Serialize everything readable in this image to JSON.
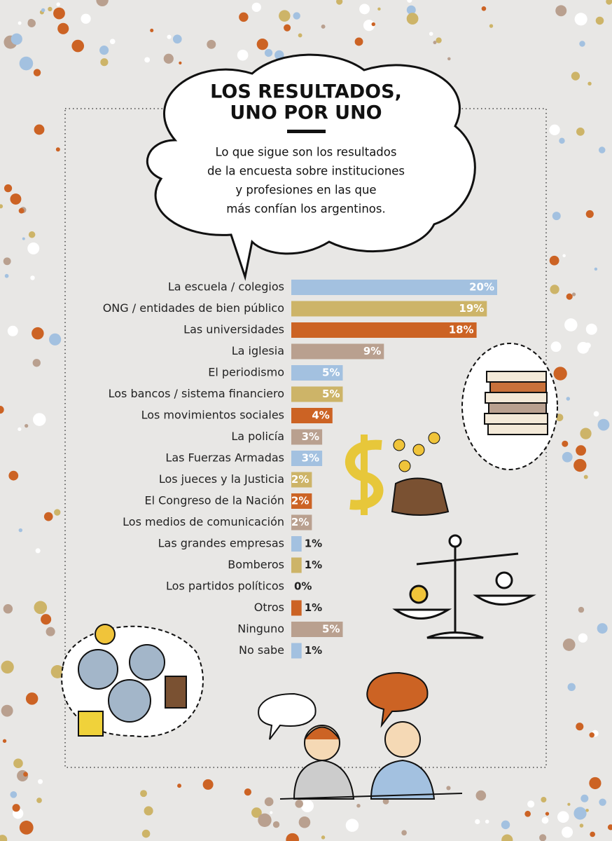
{
  "chart_data": {
    "type": "hbar",
    "title": [
      "LOS RESULTADOS,",
      "UNO POR UNO"
    ],
    "subtitle": [
      "Lo que sigue son los resultados",
      "de la encuesta sobre instituciones",
      "y profesiones en las que",
      "más confían los argentinos."
    ],
    "categories": [
      "La escuela / colegios",
      "ONG / entidades de bien público",
      "Las universidades",
      "La iglesia",
      "El periodismo",
      "Los bancos / sistema financiero",
      "Los movimientos sociales",
      "La policía",
      "Las Fuerzas Armadas",
      "Los jueces y la Justicia",
      "El Congreso de la Nación",
      "Los medios de comunicación",
      "Las grandes empresas",
      "Bomberos",
      "Los partidos políticos",
      "Otros",
      "Ninguno",
      "No sabe"
    ],
    "values": [
      20,
      19,
      18,
      9,
      5,
      5,
      4,
      3,
      3,
      2,
      2,
      2,
      1,
      1,
      0,
      1,
      5,
      1
    ],
    "value_labels": [
      "20%",
      "19%",
      "18%",
      "9%",
      "5%",
      "5%",
      "4%",
      "3%",
      "3%",
      "2%",
      "2%",
      "2%",
      "1%",
      "1%",
      "0%",
      "1%",
      "5%",
      "1%"
    ],
    "colors": [
      "#a3c1e0",
      "#cdb468",
      "#cc6324",
      "#b9a08f",
      "#a3c1e0",
      "#cdb468",
      "#cc6324",
      "#b9a08f",
      "#a3c1e0",
      "#cdb468",
      "#cc6324",
      "#b9a08f",
      "#a3c1e0",
      "#cdb468",
      "#cc6324",
      "#cc6324",
      "#b9a08f",
      "#a3c1e0"
    ]
  }
}
